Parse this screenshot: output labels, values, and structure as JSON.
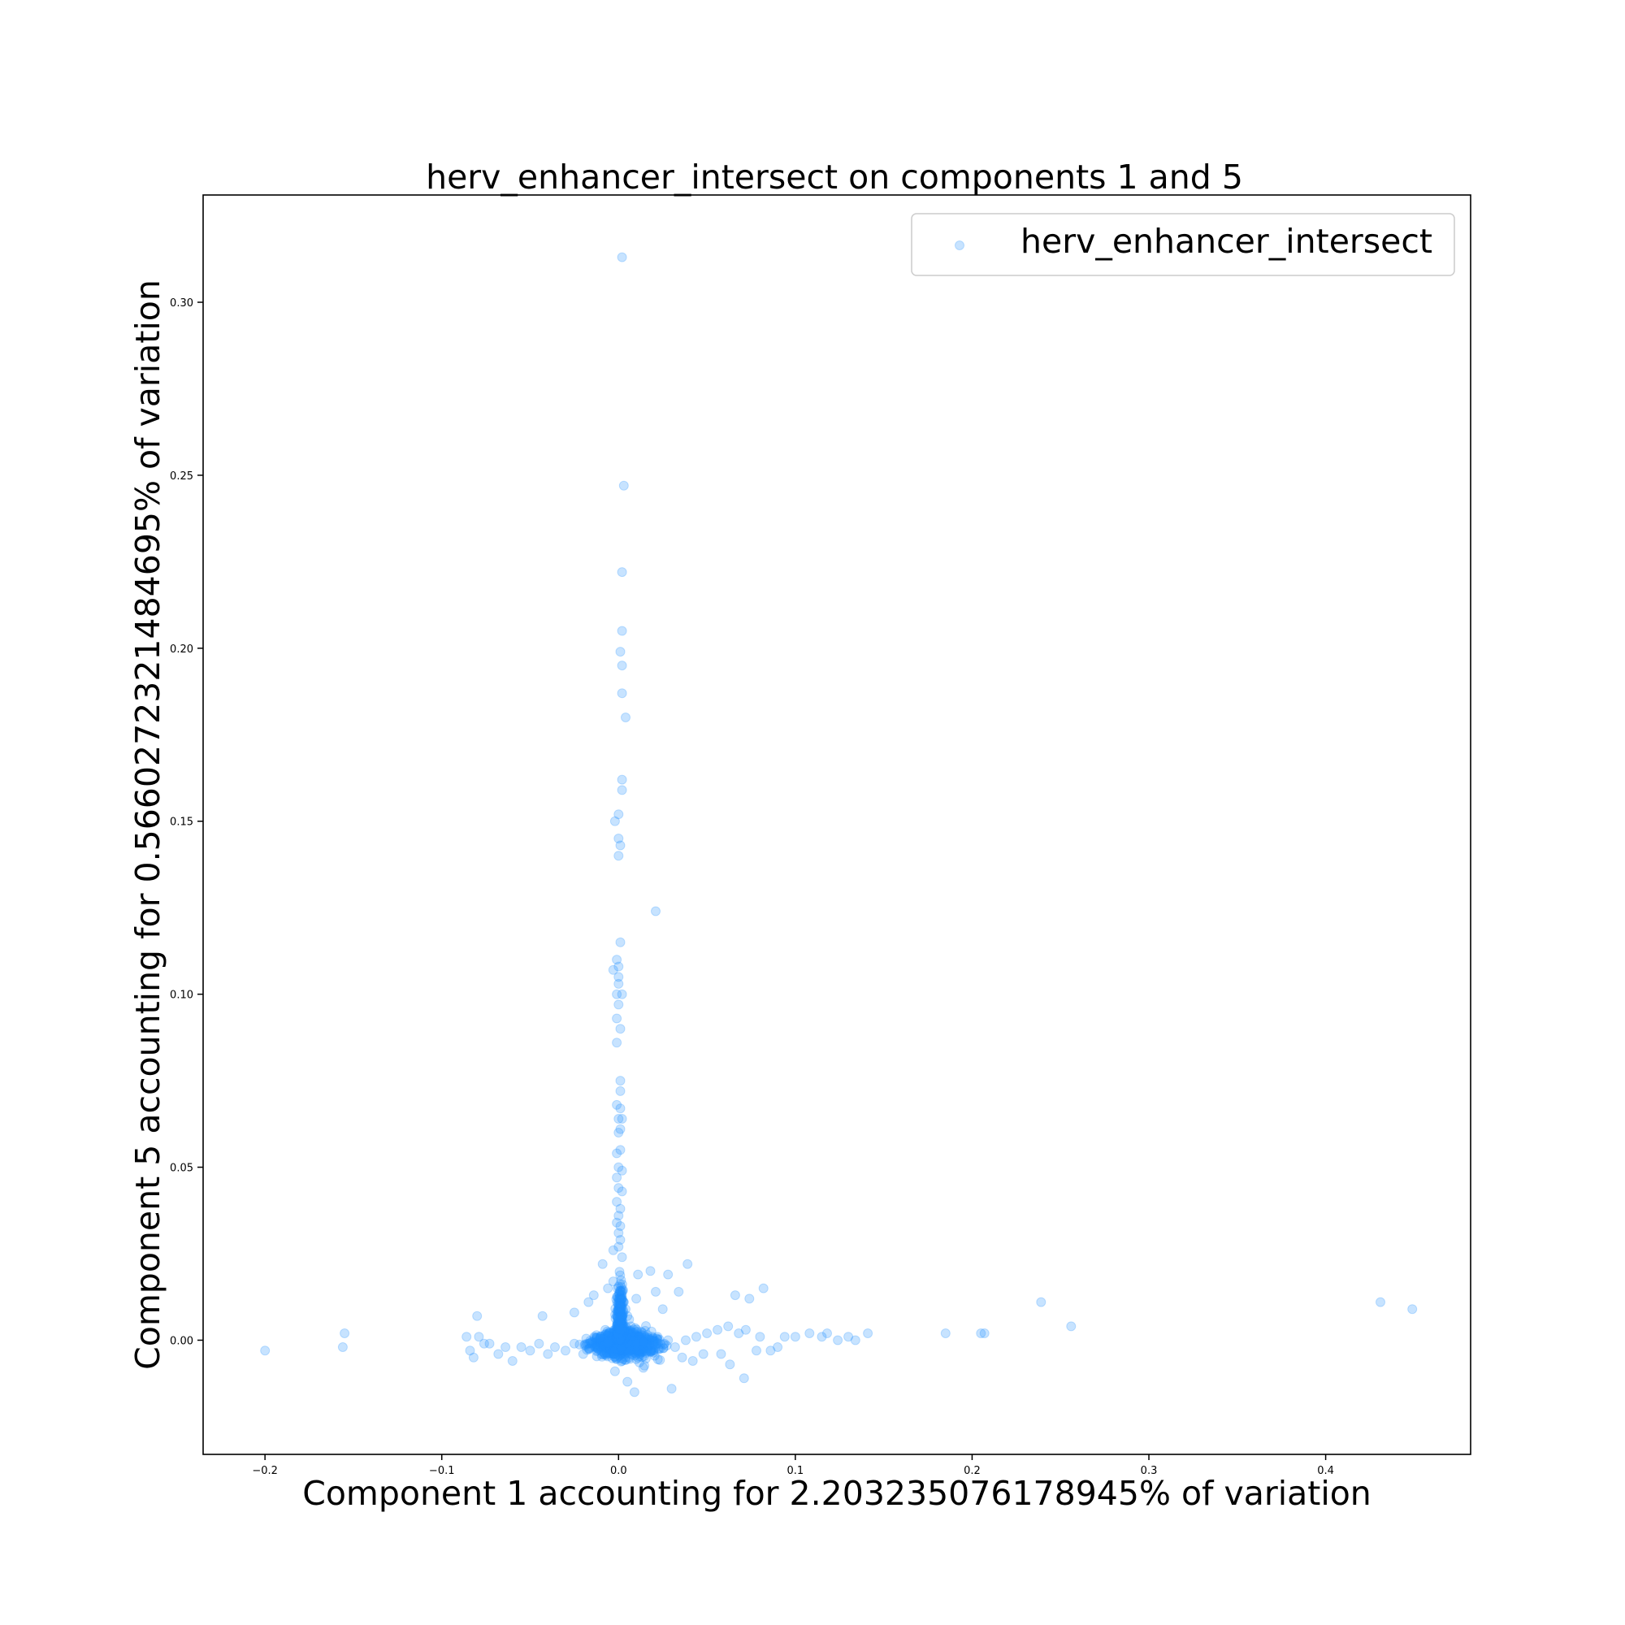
{
  "chart_data": {
    "type": "scatter",
    "title": "herv_enhancer_intersect on components 1 and 5",
    "xlabel": "Component 1 accounting for 2.203235076178945% of variation",
    "ylabel": "Component 5 accounting for 0.5660272321484695% of variation",
    "xlim": [
      -0.235,
      0.482
    ],
    "ylim": [
      -0.033,
      0.331
    ],
    "xticks": [
      -0.2,
      -0.1,
      0.0,
      0.1,
      0.2,
      0.3,
      0.4
    ],
    "yticks": [
      0.0,
      0.05,
      0.1,
      0.15,
      0.2,
      0.25,
      0.3
    ],
    "xtick_labels": [
      "−0.2",
      "−0.1",
      "0.0",
      "0.1",
      "0.2",
      "0.3",
      "0.4"
    ],
    "ytick_labels": [
      "0.00",
      "0.05",
      "0.10",
      "0.15",
      "0.20",
      "0.25",
      "0.30"
    ],
    "grid": false,
    "legend": "top-right",
    "series": [
      {
        "name": "herv_enhancer_intersect",
        "color": "#1e90ff",
        "alpha": 0.25,
        "points": [
          [
            0.002,
            0.313
          ],
          [
            0.003,
            0.247
          ],
          [
            0.002,
            0.222
          ],
          [
            0.002,
            0.205
          ],
          [
            0.001,
            0.199
          ],
          [
            0.002,
            0.195
          ],
          [
            0.002,
            0.187
          ],
          [
            0.004,
            0.18
          ],
          [
            0.002,
            0.162
          ],
          [
            0.002,
            0.159
          ],
          [
            0.0,
            0.152
          ],
          [
            -0.002,
            0.15
          ],
          [
            0.0,
            0.145
          ],
          [
            0.001,
            0.143
          ],
          [
            0.0,
            0.14
          ],
          [
            0.021,
            0.124
          ],
          [
            0.001,
            0.115
          ],
          [
            -0.001,
            0.11
          ],
          [
            0.0,
            0.108
          ],
          [
            -0.003,
            0.107
          ],
          [
            0.0,
            0.105
          ],
          [
            0.0,
            0.103
          ],
          [
            -0.001,
            0.1
          ],
          [
            0.002,
            0.1
          ],
          [
            0.0,
            0.097
          ],
          [
            -0.001,
            0.093
          ],
          [
            0.001,
            0.09
          ],
          [
            -0.001,
            0.086
          ],
          [
            0.001,
            0.075
          ],
          [
            0.001,
            0.072
          ],
          [
            -0.001,
            0.068
          ],
          [
            0.001,
            0.067
          ],
          [
            0.0,
            0.064
          ],
          [
            0.002,
            0.064
          ],
          [
            0.001,
            0.061
          ],
          [
            0.0,
            0.06
          ],
          [
            0.001,
            0.055
          ],
          [
            -0.001,
            0.054
          ],
          [
            0.0,
            0.05
          ],
          [
            0.002,
            0.049
          ],
          [
            -0.001,
            0.047
          ],
          [
            0.0,
            0.044
          ],
          [
            0.002,
            0.043
          ],
          [
            -0.001,
            0.04
          ],
          [
            0.001,
            0.038
          ],
          [
            0.0,
            0.036
          ],
          [
            -0.001,
            0.034
          ],
          [
            0.001,
            0.033
          ],
          [
            0.0,
            0.031
          ],
          [
            0.001,
            0.029
          ],
          [
            0.0,
            0.027
          ],
          [
            -0.003,
            0.026
          ],
          [
            0.002,
            0.024
          ],
          [
            -0.009,
            0.022
          ],
          [
            0.011,
            0.019
          ],
          [
            0.018,
            0.02
          ],
          [
            0.028,
            0.019
          ],
          [
            0.039,
            0.022
          ],
          [
            0.021,
            0.014
          ],
          [
            0.034,
            0.014
          ],
          [
            0.066,
            0.013
          ],
          [
            0.074,
            0.012
          ],
          [
            0.082,
            0.015
          ],
          [
            -0.003,
            0.017
          ],
          [
            -0.006,
            0.015
          ],
          [
            -0.014,
            0.013
          ],
          [
            -0.017,
            0.011
          ],
          [
            0.01,
            0.012
          ],
          [
            0.025,
            0.009
          ],
          [
            -0.025,
            0.008
          ],
          [
            -0.043,
            0.007
          ],
          [
            -0.08,
            0.007
          ],
          [
            -0.155,
            0.002
          ],
          [
            -0.2,
            -0.003
          ],
          [
            -0.156,
            -0.002
          ],
          [
            -0.086,
            0.001
          ],
          [
            -0.079,
            0.001
          ],
          [
            -0.084,
            -0.003
          ],
          [
            -0.082,
            -0.005
          ],
          [
            -0.076,
            -0.001
          ],
          [
            -0.073,
            -0.001
          ],
          [
            -0.068,
            -0.004
          ],
          [
            -0.064,
            -0.002
          ],
          [
            -0.06,
            -0.006
          ],
          [
            -0.055,
            -0.002
          ],
          [
            -0.05,
            -0.003
          ],
          [
            -0.045,
            -0.001
          ],
          [
            -0.04,
            -0.004
          ],
          [
            -0.036,
            -0.002
          ],
          [
            -0.03,
            -0.003
          ],
          [
            -0.025,
            -0.001
          ],
          [
            -0.02,
            -0.004
          ],
          [
            -0.016,
            -0.002
          ],
          [
            -0.012,
            -0.003
          ],
          [
            -0.008,
            -0.001
          ],
          [
            0.1,
            0.001
          ],
          [
            0.108,
            0.002
          ],
          [
            0.115,
            0.001
          ],
          [
            0.118,
            0.002
          ],
          [
            0.124,
            0.0
          ],
          [
            0.13,
            0.001
          ],
          [
            0.134,
            0.0
          ],
          [
            0.141,
            0.002
          ],
          [
            0.185,
            0.002
          ],
          [
            0.205,
            0.002
          ],
          [
            0.207,
            0.002
          ],
          [
            0.239,
            0.011
          ],
          [
            0.256,
            0.004
          ],
          [
            0.431,
            0.011
          ],
          [
            0.449,
            0.009
          ],
          [
            0.086,
            -0.003
          ],
          [
            0.09,
            -0.002
          ],
          [
            0.094,
            0.001
          ],
          [
            0.078,
            -0.003
          ],
          [
            0.071,
            -0.011
          ],
          [
            0.063,
            -0.007
          ],
          [
            0.058,
            -0.004
          ],
          [
            0.048,
            -0.004
          ],
          [
            0.042,
            -0.006
          ],
          [
            0.036,
            -0.005
          ],
          [
            0.03,
            -0.014
          ],
          [
            0.009,
            -0.015
          ],
          [
            0.005,
            -0.012
          ],
          [
            -0.002,
            -0.009
          ],
          [
            0.014,
            -0.008
          ],
          [
            0.002,
            -0.006
          ],
          [
            0.006,
            -0.005
          ],
          [
            0.01,
            -0.004
          ],
          [
            0.016,
            -0.002
          ],
          [
            0.02,
            -0.003
          ],
          [
            0.026,
            -0.001
          ],
          [
            0.032,
            -0.002
          ],
          [
            0.038,
            0.0
          ],
          [
            0.044,
            0.001
          ],
          [
            0.05,
            0.002
          ],
          [
            0.056,
            0.003
          ],
          [
            0.062,
            0.004
          ],
          [
            0.068,
            0.002
          ],
          [
            0.072,
            0.003
          ],
          [
            0.08,
            0.001
          ],
          [
            0.003,
            0.011
          ],
          [
            0.004,
            0.009
          ],
          [
            0.005,
            0.007
          ],
          [
            0.006,
            0.006
          ],
          [
            0.007,
            0.004
          ],
          [
            0.0,
            0.004
          ],
          [
            -0.002,
            0.003
          ],
          [
            -0.005,
            0.002
          ],
          [
            0.001,
            0.002
          ],
          [
            0.003,
            0.001
          ],
          [
            0.005,
            0.0
          ],
          [
            0.008,
            -0.001
          ],
          [
            0.012,
            0.0
          ],
          [
            0.015,
            0.001
          ],
          [
            0.018,
            0.0
          ],
          [
            0.022,
            0.001
          ],
          [
            0.028,
            0.0
          ],
          [
            -0.004,
            -0.001
          ],
          [
            -0.007,
            0.0
          ],
          [
            -0.01,
            0.001
          ]
        ]
      }
    ]
  }
}
